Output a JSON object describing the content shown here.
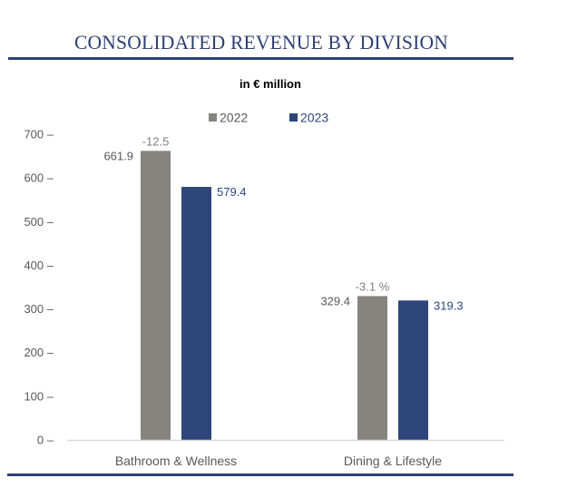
{
  "header": {
    "title": "CONSOLIDATED REVENUE BY DIVISION",
    "subtitle": "in € million"
  },
  "chart_data": {
    "type": "bar",
    "title": "CONSOLIDATED REVENUE BY DIVISION",
    "subtitle": "in € million",
    "xlabel": "",
    "ylabel": "",
    "categories": [
      "Bathroom & Wellness",
      "Dining & Lifestyle"
    ],
    "series": [
      {
        "name": "2022",
        "values": [
          661.9,
          329.4
        ],
        "color": "#85847f",
        "label_color": "#595959"
      },
      {
        "name": "2023",
        "values": [
          579.4,
          319.3
        ],
        "color": "#2e4679",
        "label_color": "#2e4679"
      }
    ],
    "value_labels": {
      "2022": [
        "661.9",
        "329.4"
      ],
      "2023": [
        "579.4",
        "319.3"
      ]
    },
    "change_annotations": [
      "-12.5",
      "-3.1 %"
    ],
    "ylim": [
      0,
      700
    ],
    "yticks": [
      0,
      100,
      200,
      300,
      400,
      500,
      600,
      700
    ],
    "ytick_labels": [
      "0 –",
      "100 –",
      "200 –",
      "300 –",
      "400 –",
      "500 –",
      "600 –",
      "700 –"
    ],
    "grid": false,
    "legend": {
      "position": "top-center",
      "entries": [
        "2022",
        "2023"
      ]
    }
  },
  "colors": {
    "accent": "#2e3f73",
    "bar_2022": "#85847f",
    "bar_2023": "#2e4679",
    "axis": "#d9d9d9",
    "text_gray": "#595959"
  }
}
